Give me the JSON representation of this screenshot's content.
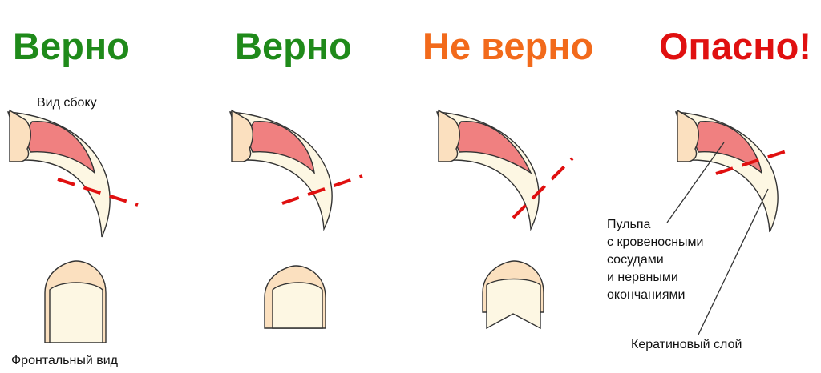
{
  "headings": [
    {
      "text": "Верно",
      "color": "#1f8a1a"
    },
    {
      "text": "Верно",
      "color": "#1f8a1a"
    },
    {
      "text": "Не верно",
      "color": "#f26a1b"
    },
    {
      "text": "Опасно!",
      "color": "#e01010"
    }
  ],
  "labels": {
    "side_view": "Вид сбоку",
    "front_view": "Фронтальный вид",
    "pulp": [
      "Пульпа",
      "с кровеносными",
      "сосудами",
      "и нервными",
      "окончаниями"
    ],
    "keratin": "Кератиновый слой"
  },
  "colors": {
    "nail_fill": "#fdf7e3",
    "base_fill": "#fbe0bf",
    "pulp_fill": "#f08080",
    "outline": "#333333",
    "cut_line": "#e01010"
  }
}
